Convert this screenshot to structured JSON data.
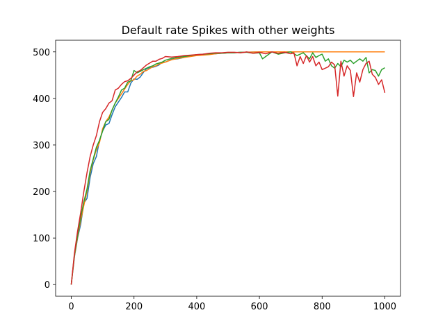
{
  "chart_data": {
    "type": "line",
    "title": "Default rate Spikes with other weights",
    "xlabel": "",
    "ylabel": "",
    "xlim": [
      -50,
      1050
    ],
    "ylim": [
      -25,
      525
    ],
    "xticks": [
      0,
      200,
      400,
      600,
      800,
      1000
    ],
    "yticks": [
      0,
      100,
      200,
      300,
      400,
      500
    ],
    "grid": false,
    "legend": "none",
    "series": [
      {
        "color": "#1f77b4",
        "x": [
          0,
          10,
          20,
          30,
          40,
          50,
          60,
          70,
          80,
          90,
          100,
          110,
          120,
          130,
          140,
          150,
          160,
          170,
          180,
          190,
          200,
          210,
          220,
          230,
          240,
          250,
          260,
          270,
          280,
          290,
          300,
          320,
          340,
          360,
          380,
          400,
          420,
          440,
          460,
          480,
          500,
          550,
          600,
          650,
          700,
          750,
          800,
          850,
          900,
          950,
          1000
        ],
        "y": [
          0,
          60,
          100,
          130,
          175,
          185,
          230,
          260,
          275,
          310,
          330,
          343,
          346,
          365,
          382,
          392,
          402,
          414,
          414,
          433,
          442,
          441,
          446,
          456,
          464,
          466,
          467,
          469,
          472,
          478,
          478,
          484,
          485,
          488,
          491,
          493,
          494,
          495,
          496,
          497,
          498,
          499,
          500,
          500,
          500,
          500,
          500,
          500,
          500,
          500,
          500
        ]
      },
      {
        "color": "#ff7f0e",
        "x": [
          0,
          10,
          20,
          30,
          40,
          50,
          60,
          70,
          80,
          90,
          100,
          110,
          120,
          130,
          140,
          150,
          160,
          170,
          180,
          190,
          200,
          210,
          220,
          230,
          240,
          250,
          260,
          270,
          280,
          290,
          300,
          320,
          340,
          360,
          380,
          400,
          420,
          440,
          460,
          480,
          500,
          550,
          600,
          650,
          700,
          750,
          800,
          850,
          900,
          950,
          1000
        ],
        "y": [
          0,
          62,
          102,
          138,
          170,
          200,
          240,
          268,
          290,
          305,
          335,
          350,
          360,
          375,
          390,
          400,
          410,
          420,
          430,
          438,
          440,
          448,
          452,
          458,
          460,
          464,
          468,
          470,
          474,
          476,
          478,
          483,
          486,
          488,
          490,
          492,
          493,
          494,
          496,
          497,
          498,
          499,
          500,
          500,
          500,
          500,
          500,
          500,
          500,
          500,
          500
        ]
      },
      {
        "color": "#2ca02c",
        "x": [
          0,
          10,
          20,
          30,
          40,
          50,
          60,
          70,
          80,
          90,
          100,
          110,
          120,
          130,
          140,
          150,
          160,
          170,
          180,
          190,
          200,
          210,
          220,
          230,
          240,
          250,
          260,
          270,
          280,
          290,
          300,
          320,
          340,
          360,
          380,
          400,
          420,
          440,
          460,
          480,
          500,
          520,
          540,
          560,
          580,
          600,
          610,
          620,
          640,
          660,
          680,
          700,
          720,
          740,
          760,
          770,
          780,
          790,
          800,
          810,
          820,
          830,
          840,
          850,
          860,
          870,
          880,
          890,
          900,
          910,
          920,
          930,
          940,
          950,
          960,
          970,
          980,
          990,
          1000
        ],
        "y": [
          0,
          65,
          105,
          145,
          178,
          205,
          245,
          270,
          295,
          310,
          330,
          350,
          355,
          375,
          390,
          403,
          418,
          422,
          435,
          438,
          460,
          455,
          458,
          462,
          465,
          468,
          470,
          474,
          476,
          478,
          482,
          486,
          488,
          490,
          492,
          494,
          495,
          496,
          497,
          497,
          498,
          498,
          499,
          499,
          497,
          498,
          485,
          490,
          500,
          495,
          498,
          500,
          492,
          498,
          485,
          498,
          488,
          492,
          495,
          480,
          485,
          470,
          465,
          475,
          468,
          482,
          478,
          482,
          475,
          480,
          485,
          480,
          488,
          455,
          462,
          460,
          448,
          462,
          466
        ]
      },
      {
        "color": "#d62728",
        "x": [
          0,
          10,
          20,
          30,
          40,
          50,
          60,
          70,
          80,
          90,
          100,
          110,
          120,
          130,
          140,
          150,
          160,
          170,
          180,
          190,
          200,
          210,
          220,
          230,
          240,
          250,
          260,
          270,
          280,
          290,
          300,
          320,
          340,
          360,
          380,
          400,
          420,
          440,
          460,
          480,
          500,
          520,
          540,
          560,
          580,
          600,
          620,
          640,
          660,
          680,
          700,
          710,
          720,
          730,
          740,
          750,
          760,
          770,
          780,
          790,
          800,
          810,
          820,
          830,
          840,
          850,
          860,
          870,
          880,
          890,
          900,
          910,
          920,
          930,
          940,
          950,
          960,
          970,
          980,
          990,
          1000
        ],
        "y": [
          0,
          68,
          115,
          155,
          200,
          240,
          275,
          300,
          320,
          350,
          370,
          378,
          390,
          395,
          418,
          422,
          430,
          436,
          438,
          443,
          450,
          457,
          460,
          466,
          472,
          476,
          480,
          480,
          484,
          486,
          490,
          489,
          490,
          492,
          493,
          494,
          495,
          497,
          498,
          498,
          499,
          499,
          498,
          500,
          497,
          499,
          496,
          500,
          497,
          499,
          496,
          498,
          470,
          490,
          475,
          492,
          478,
          490,
          470,
          478,
          462,
          465,
          468,
          478,
          472,
          405,
          480,
          448,
          470,
          460,
          404,
          455,
          435,
          462,
          475,
          480,
          452,
          445,
          430,
          440,
          412
        ]
      }
    ]
  }
}
